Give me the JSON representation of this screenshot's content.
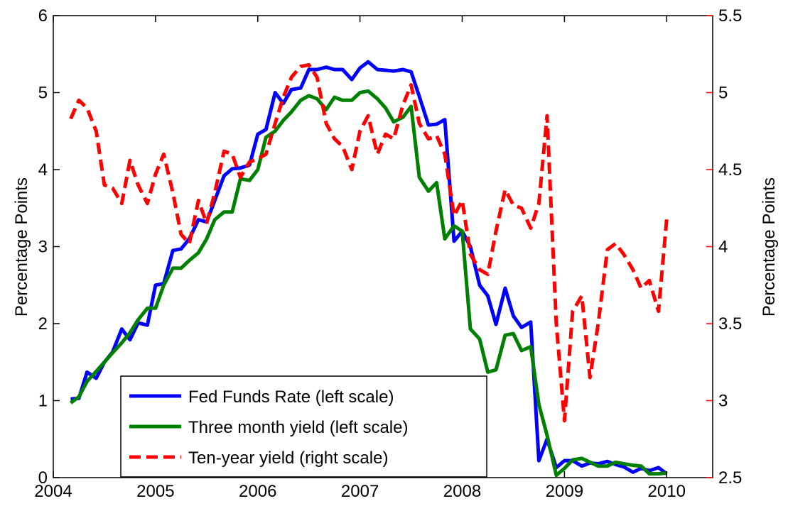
{
  "chart_data": {
    "type": "line",
    "y_label": "Percentage Points",
    "y2_label": "Percentage Points",
    "x": [
      2004.17,
      2004.25,
      2004.33,
      2004.42,
      2004.5,
      2004.58,
      2004.67,
      2004.75,
      2004.83,
      2004.92,
      2005.0,
      2005.08,
      2005.17,
      2005.25,
      2005.33,
      2005.42,
      2005.5,
      2005.58,
      2005.67,
      2005.75,
      2005.83,
      2005.92,
      2006.0,
      2006.08,
      2006.17,
      2006.25,
      2006.33,
      2006.42,
      2006.5,
      2006.58,
      2006.67,
      2006.75,
      2006.83,
      2006.92,
      2007.0,
      2007.08,
      2007.17,
      2007.25,
      2007.33,
      2007.42,
      2007.5,
      2007.58,
      2007.67,
      2007.75,
      2007.83,
      2007.92,
      2008.0,
      2008.08,
      2008.17,
      2008.25,
      2008.33,
      2008.42,
      2008.5,
      2008.58,
      2008.67,
      2008.75,
      2008.83,
      2008.92,
      2009.0,
      2009.08,
      2009.17,
      2009.25,
      2009.33,
      2009.42,
      2009.5,
      2009.58,
      2009.67,
      2009.75,
      2009.83,
      2009.92,
      2010.0
    ],
    "series": [
      {
        "name": "Fed Funds Rate (left scale)",
        "color": "#0000ff",
        "dash": false,
        "values": [
          1.02,
          1.03,
          1.37,
          1.29,
          1.5,
          1.63,
          1.93,
          1.79,
          2.01,
          1.98,
          2.5,
          2.52,
          2.95,
          2.97,
          3.1,
          3.35,
          3.32,
          3.6,
          3.92,
          4.01,
          4.02,
          4.06,
          4.46,
          4.52,
          5.0,
          4.86,
          5.04,
          5.06,
          5.3,
          5.3,
          5.33,
          5.3,
          5.3,
          5.17,
          5.32,
          5.4,
          5.3,
          5.29,
          5.28,
          5.3,
          5.27,
          4.95,
          4.58,
          4.59,
          4.65,
          3.07,
          3.2,
          3.0,
          2.5,
          2.36,
          1.99,
          2.46,
          2.1,
          1.95,
          2.02,
          0.22,
          0.5,
          0.13,
          0.22,
          0.22,
          0.15,
          0.19,
          0.18,
          0.21,
          0.17,
          0.14,
          0.07,
          0.12,
          0.09,
          0.13,
          0.05
        ]
      },
      {
        "name": "Three month yield (left scale)",
        "color": "#008000",
        "dash": false,
        "values": [
          0.97,
          1.05,
          1.25,
          1.38,
          1.5,
          1.62,
          1.75,
          1.88,
          2.05,
          2.2,
          2.2,
          2.5,
          2.72,
          2.72,
          2.82,
          2.92,
          3.1,
          3.35,
          3.45,
          3.45,
          3.88,
          3.86,
          4.0,
          4.42,
          4.5,
          4.64,
          4.75,
          4.9,
          4.96,
          4.92,
          4.78,
          4.94,
          4.9,
          4.9,
          5.0,
          5.02,
          4.92,
          4.8,
          4.62,
          4.68,
          4.82,
          3.9,
          3.72,
          3.83,
          3.1,
          3.27,
          3.2,
          1.93,
          1.8,
          1.37,
          1.4,
          1.85,
          1.87,
          1.65,
          1.7,
          0.95,
          0.55,
          0.03,
          0.12,
          0.23,
          0.25,
          0.2,
          0.15,
          0.15,
          0.2,
          0.18,
          0.16,
          0.15,
          0.05,
          0.05,
          0.06
        ]
      },
      {
        "name": "Ten-year yield (right scale)",
        "color": "#ff0000",
        "dash": true,
        "axis": "y2",
        "values": [
          4.83,
          4.95,
          4.9,
          4.75,
          4.4,
          4.38,
          4.28,
          4.56,
          4.4,
          4.28,
          4.47,
          4.6,
          4.35,
          4.08,
          4.02,
          4.3,
          4.15,
          4.35,
          4.62,
          4.6,
          4.45,
          4.55,
          4.57,
          4.6,
          4.8,
          4.97,
          5.1,
          5.17,
          5.18,
          5.1,
          4.8,
          4.7,
          4.65,
          4.5,
          4.75,
          4.85,
          4.6,
          4.73,
          4.7,
          4.92,
          5.05,
          4.8,
          4.7,
          4.72,
          4.6,
          4.2,
          4.3,
          3.95,
          3.85,
          3.82,
          4.1,
          4.37,
          4.27,
          4.25,
          4.12,
          4.28,
          4.85,
          3.5,
          2.87,
          3.58,
          3.68,
          3.15,
          3.5,
          3.98,
          4.02,
          3.95,
          3.85,
          3.73,
          3.78,
          3.58,
          4.18
        ]
      }
    ],
    "xlim": [
      2004,
      2010.45
    ],
    "xticks": [
      2004,
      2005,
      2006,
      2007,
      2008,
      2009,
      2010
    ],
    "ylim": [
      0,
      6
    ],
    "yticks": [
      0,
      1,
      2,
      3,
      4,
      5,
      6
    ],
    "y2lim": [
      2.5,
      5.5
    ],
    "y2ticks": [
      2.5,
      3,
      3.5,
      4,
      4.5,
      5,
      5.5
    ],
    "y2_color": "#ff0000",
    "legend": "lower left"
  }
}
